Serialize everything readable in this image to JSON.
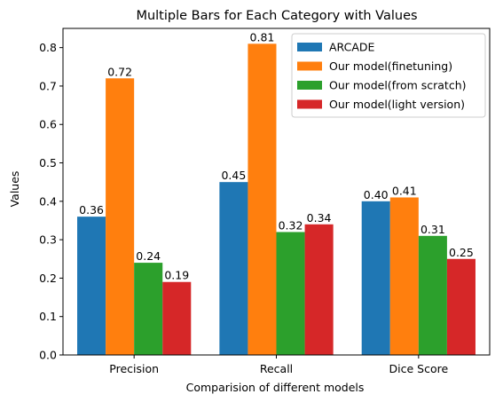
{
  "chart_data": {
    "type": "bar",
    "title": "Multiple Bars for Each Category with Values",
    "xlabel": "Comparision of different models",
    "ylabel": "Values",
    "categories": [
      "Precision",
      "Recall",
      "Dice Score"
    ],
    "series": [
      {
        "name": "ARCADE",
        "values": [
          0.36,
          0.45,
          0.4
        ],
        "color": "#1f77b4"
      },
      {
        "name": "Our model(finetuning)",
        "values": [
          0.72,
          0.81,
          0.41
        ],
        "color": "#ff7f0e"
      },
      {
        "name": "Our model(from scratch)",
        "values": [
          0.24,
          0.32,
          0.31
        ],
        "color": "#2ca02c"
      },
      {
        "name": "Our model(light version)",
        "values": [
          0.19,
          0.34,
          0.25
        ],
        "color": "#d62728"
      }
    ],
    "value_labels": [
      [
        "0.36",
        "0.45",
        "0.40"
      ],
      [
        "0.72",
        "0.81",
        "0.41"
      ],
      [
        "0.24",
        "0.32",
        "0.31"
      ],
      [
        "0.19",
        "0.34",
        "0.25"
      ]
    ],
    "yticks": [
      0.0,
      0.1,
      0.2,
      0.3,
      0.4,
      0.5,
      0.6,
      0.7,
      0.8
    ],
    "ytick_labels": [
      "0.0",
      "0.1",
      "0.2",
      "0.3",
      "0.4",
      "0.5",
      "0.6",
      "0.7",
      "0.8"
    ],
    "ylim": [
      0,
      0.85
    ],
    "grid": false,
    "legend_position": "top-right"
  }
}
